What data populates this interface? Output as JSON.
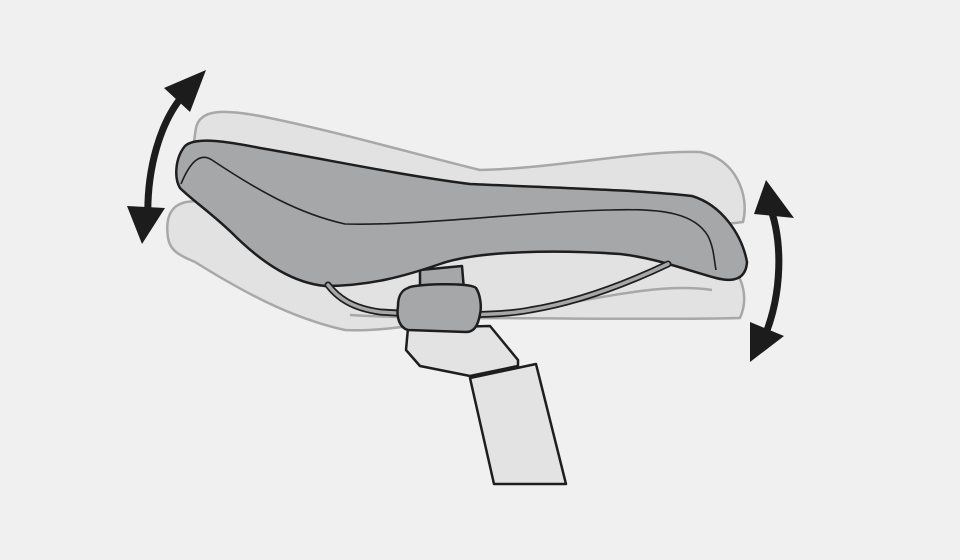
{
  "diagram": {
    "subject": "saddle-tilt-adjustment",
    "colors": {
      "background": "#f0f0f0",
      "ghost_fill": "#e2e2e2",
      "ghost_stroke": "#a8a8a8",
      "saddle_fill": "#a6a7a9",
      "outline": "#1e1e1e",
      "post_fill": "#e3e3e3",
      "clamp_fill": "#a6a7a9",
      "arrow": "#1c1c1c"
    },
    "elements": [
      "ghost-saddle-tilted-up",
      "ghost-saddle-tilted-down",
      "saddle",
      "saddle-rail",
      "seatpost",
      "seatpost-clamp",
      "front-tilt-arrow",
      "rear-tilt-arrow"
    ]
  }
}
